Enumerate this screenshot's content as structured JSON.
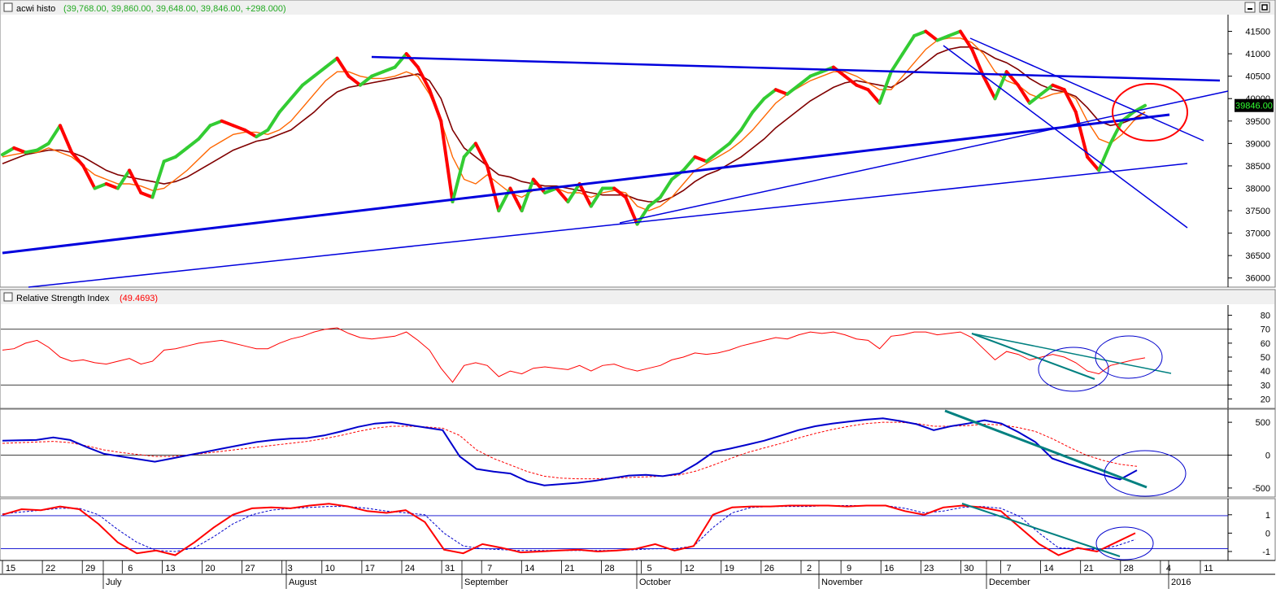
{
  "windows": {
    "price": {
      "title": "acwi histo",
      "ohlc": "(39,768.00, 39,860.00, 39,648.00, 39,846.00, +298.000)"
    },
    "rsi": {
      "title": "Relative Strength Index",
      "value": "(49.4693)"
    }
  },
  "colors": {
    "up": "#33cc33",
    "down": "#ff0000",
    "ma_fast": "#ff6600",
    "ma_slow": "#800000",
    "trend": "#0000dd",
    "teal": "#008080",
    "rsi": "#ff0000",
    "macd": "#0000cc",
    "stoch": "#ff0000",
    "panel_bg": "#ffffff",
    "title_bg": "#f0f0f0"
  },
  "chart_data": [
    {
      "type": "line",
      "panel": "price",
      "yaxis": {
        "ticks": [
          36000,
          36500,
          37000,
          37500,
          38000,
          38500,
          39000,
          39500,
          40000,
          40500,
          41000,
          41500
        ],
        "ylim": [
          35850,
          41800
        ]
      },
      "last_value": "39846.00",
      "series": [
        {
          "values": [
            38750,
            38900,
            38800,
            38850,
            39000,
            39400,
            38800,
            38500,
            38000,
            38100,
            38000,
            38400,
            37900,
            37800,
            38600,
            38700,
            38900,
            39100,
            39400,
            39500,
            39400,
            39300,
            39150,
            39300,
            39700,
            40000,
            40300,
            40500,
            40700,
            40900,
            40500,
            40300,
            40500,
            40600,
            40700,
            41000,
            40700,
            40200,
            39500,
            37700,
            38700,
            39000,
            38500,
            37500,
            38000,
            37500,
            38200,
            37900,
            38000,
            37700,
            38100,
            37600,
            38000,
            38000,
            37800,
            37200,
            37600,
            37800,
            38200,
            38400,
            38700,
            38600,
            38800,
            39000,
            39300,
            39700,
            40000,
            40200,
            40100,
            40300,
            40500,
            40600,
            40700,
            40500,
            40300,
            40200,
            39900,
            40600,
            41000,
            41400,
            41500,
            41300,
            41400,
            41500,
            41100,
            40500,
            40000,
            40600,
            40300,
            39900,
            40100,
            40300,
            40200,
            39700,
            38700,
            38400,
            39000,
            39500,
            39700,
            39846
          ]
        },
        {
          "values": [
            38700,
            38750,
            38800,
            38800,
            38900,
            38800,
            38700,
            38500,
            38300,
            38200,
            38100,
            38100,
            38050,
            37950,
            38000,
            38200,
            38400,
            38650,
            38900,
            39050,
            39200,
            39250,
            39250,
            39200,
            39300,
            39500,
            39800,
            40100,
            40400,
            40600,
            40600,
            40500,
            40450,
            40450,
            40500,
            40600,
            40500,
            40100,
            39500,
            38700,
            38200,
            38100,
            38300,
            38100,
            37900,
            37800,
            37950,
            38000,
            38000,
            37900,
            37900,
            37800,
            37900,
            37950,
            37900,
            37600,
            37500,
            37600,
            37800,
            38100,
            38400,
            38550,
            38700,
            38850,
            39050,
            39300,
            39600,
            39900,
            40100,
            40250,
            40400,
            40500,
            40600,
            40600,
            40500,
            40350,
            40200,
            40200,
            40500,
            40800,
            41100,
            41300,
            41350,
            41350,
            41250,
            41000,
            40600,
            40400,
            40300,
            40100,
            40000,
            40100,
            40150,
            40000,
            39500,
            39100,
            39000,
            39200,
            39500,
            39700
          ]
        },
        {
          "values": [
            38550,
            38650,
            38750,
            38800,
            38850,
            38850,
            38800,
            38700,
            38550,
            38400,
            38300,
            38250,
            38200,
            38150,
            38100,
            38150,
            38250,
            38400,
            38550,
            38700,
            38850,
            38950,
            39050,
            39100,
            39200,
            39300,
            39500,
            39700,
            39950,
            40150,
            40250,
            40300,
            40350,
            40400,
            40450,
            40500,
            40550,
            40400,
            40000,
            39300,
            38900,
            38700,
            38500,
            38300,
            38250,
            38150,
            38100,
            38050,
            38050,
            38000,
            37950,
            37900,
            37850,
            37850,
            37850,
            37750,
            37700,
            37700,
            37800,
            37950,
            38150,
            38300,
            38400,
            38550,
            38700,
            38900,
            39100,
            39350,
            39550,
            39750,
            39950,
            40100,
            40250,
            40350,
            40400,
            40350,
            40300,
            40250,
            40400,
            40600,
            40800,
            41000,
            41100,
            41150,
            41150,
            41050,
            40900,
            40800,
            40650,
            40450,
            40300,
            40200,
            40150,
            40050,
            39800,
            39500,
            39400,
            39450,
            39550,
            39700
          ]
        }
      ]
    },
    {
      "type": "line",
      "panel": "rsi",
      "yaxis": {
        "ticks": [
          20,
          30,
          40,
          50,
          60,
          70,
          80
        ],
        "ylim": [
          15,
          85
        ],
        "hlines": [
          30,
          70
        ]
      },
      "series": [
        {
          "values": [
            55,
            56,
            60,
            62,
            57,
            50,
            47,
            48,
            46,
            45,
            47,
            49,
            45,
            47,
            55,
            56,
            58,
            60,
            61,
            62,
            60,
            58,
            56,
            56,
            60,
            63,
            65,
            68,
            70,
            71,
            67,
            64,
            63,
            64,
            65,
            68,
            62,
            55,
            42,
            32,
            44,
            46,
            44,
            36,
            40,
            38,
            42,
            43,
            42,
            41,
            44,
            40,
            44,
            45,
            42,
            40,
            42,
            44,
            48,
            50,
            53,
            52,
            53,
            55,
            58,
            60,
            62,
            64,
            63,
            66,
            68,
            67,
            68,
            66,
            63,
            62,
            56,
            65,
            66,
            68,
            68,
            66,
            67,
            68,
            64,
            56,
            48,
            54,
            52,
            48,
            50,
            52,
            50,
            46,
            40,
            38,
            44,
            46,
            48,
            49.5
          ]
        }
      ]
    },
    {
      "type": "line",
      "panel": "macd",
      "yaxis": {
        "ticks": [
          -500,
          0,
          500
        ],
        "ylim": [
          -600,
          650
        ],
        "hlines": [
          0
        ]
      },
      "series": [
        {
          "values": [
            220,
            225,
            230,
            270,
            230,
            120,
            20,
            -20,
            -60,
            -100,
            -50,
            0,
            50,
            100,
            150,
            200,
            230,
            250,
            260,
            300,
            360,
            430,
            480,
            500,
            460,
            420,
            380,
            -20,
            -210,
            -250,
            -280,
            -400,
            -460,
            -440,
            -420,
            -390,
            -350,
            -310,
            -300,
            -320,
            -280,
            -130,
            50,
            100,
            160,
            220,
            300,
            380,
            440,
            480,
            510,
            540,
            560,
            520,
            470,
            380,
            440,
            480,
            530,
            480,
            350,
            200,
            -50,
            -140,
            -220,
            -300,
            -370,
            -230
          ]
        },
        {
          "values": [
            180,
            190,
            200,
            210,
            190,
            140,
            80,
            40,
            10,
            -20,
            -20,
            0,
            30,
            60,
            90,
            120,
            150,
            180,
            210,
            250,
            300,
            360,
            410,
            440,
            440,
            430,
            410,
            300,
            80,
            -50,
            -150,
            -250,
            -320,
            -350,
            -360,
            -360,
            -350,
            -340,
            -330,
            -320,
            -300,
            -240,
            -150,
            -50,
            40,
            110,
            180,
            260,
            330,
            390,
            440,
            480,
            500,
            500,
            480,
            440,
            440,
            450,
            470,
            460,
            420,
            360,
            250,
            120,
            0,
            -80,
            -140,
            -170
          ]
        }
      ]
    },
    {
      "type": "line",
      "panel": "stoch",
      "yaxis": {
        "ticks": [
          -1,
          0,
          1
        ],
        "ylim": [
          -1.4,
          1.7
        ],
        "hlines": [
          -0.85,
          0.95
        ]
      },
      "series": [
        {
          "values": [
            1.0,
            1.3,
            1.25,
            1.45,
            1.3,
            0.5,
            -0.5,
            -1.1,
            -0.95,
            -1.2,
            -0.5,
            0.3,
            1.0,
            1.35,
            1.4,
            1.35,
            1.5,
            1.6,
            1.45,
            1.2,
            1.1,
            1.25,
            0.6,
            -0.9,
            -1.1,
            -0.6,
            -0.8,
            -1.05,
            -1.0,
            -0.95,
            -0.9,
            -1.0,
            -0.95,
            -0.85,
            -0.6,
            -0.95,
            -0.7,
            1.0,
            1.4,
            1.45,
            1.45,
            1.5,
            1.5,
            1.5,
            1.45,
            1.5,
            1.5,
            1.2,
            1.0,
            1.4,
            1.5,
            1.4,
            1.2,
            0.3,
            -0.6,
            -1.2,
            -0.8,
            -1.0,
            -0.5,
            0.0
          ]
        },
        {
          "values": [
            1.05,
            1.15,
            1.25,
            1.35,
            1.35,
            1.0,
            0.2,
            -0.5,
            -0.95,
            -1.0,
            -0.8,
            -0.2,
            0.5,
            1.0,
            1.25,
            1.35,
            1.4,
            1.45,
            1.45,
            1.35,
            1.2,
            1.1,
            1.0,
            0.0,
            -0.7,
            -0.85,
            -0.9,
            -0.95,
            -0.95,
            -0.95,
            -0.95,
            -0.95,
            -0.95,
            -0.9,
            -0.85,
            -0.85,
            -0.7,
            0.3,
            1.1,
            1.4,
            1.45,
            1.45,
            1.45,
            1.5,
            1.5,
            1.5,
            1.5,
            1.35,
            1.1,
            1.2,
            1.4,
            1.45,
            1.35,
            0.9,
            0.0,
            -0.8,
            -0.85,
            -0.9,
            -0.7,
            -0.35
          ]
        }
      ]
    }
  ],
  "time_axis": {
    "day_ticks": [
      "15",
      "22",
      "29",
      "6",
      "13",
      "20",
      "27",
      "3",
      "10",
      "17",
      "24",
      "31",
      "7",
      "14",
      "21",
      "28",
      "5",
      "12",
      "19",
      "26",
      "2",
      "9",
      "16",
      "23",
      "30",
      "7",
      "14",
      "21",
      "28",
      "4",
      "11"
    ],
    "months": [
      "July",
      "August",
      "September",
      "October",
      "November",
      "December",
      "2016"
    ]
  }
}
